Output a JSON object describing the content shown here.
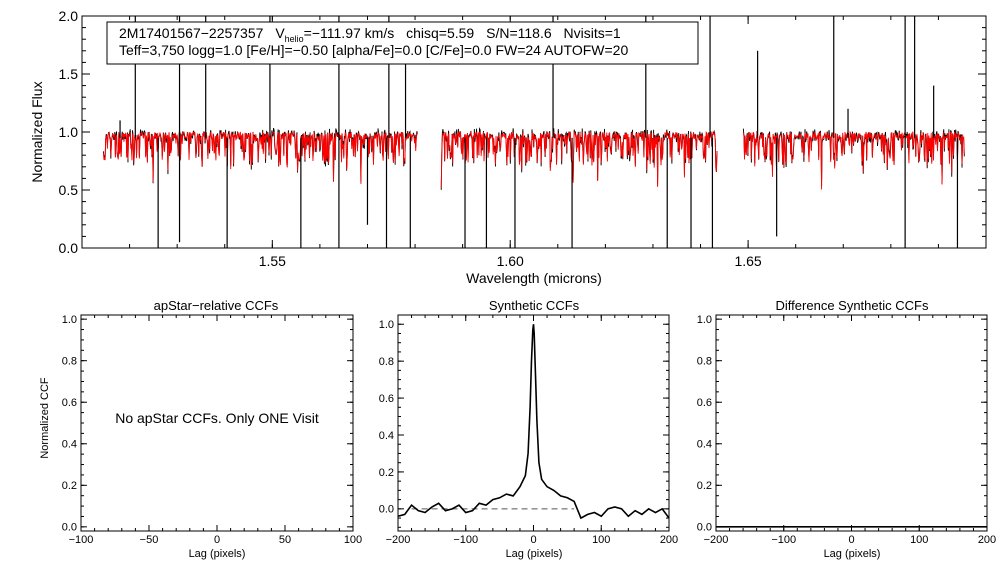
{
  "colors": {
    "observed": "#000000",
    "model": "#ff0000",
    "ref": "#555555"
  },
  "chart_data": [
    {
      "type": "line",
      "id": "spectrum",
      "title": "",
      "info_line1": {
        "star": "2M17401567−2257357",
        "v_prefix": "V",
        "v_sub": "helio",
        "v_value": "=−111.97 km/s",
        "chisq": "chisq=5.59",
        "sn": "S/N=118.6",
        "nvisits": "Nvisits=1"
      },
      "info_line2": "Teff=3,750 logg=1.0 [Fe/H]=−0.50 [alpha/Fe]=0.0 [C/Fe]=0.0 FW=24 AUTOFW=20",
      "xlabel": "Wavelength (microns)",
      "ylabel": "Normalized Flux",
      "xlim": [
        1.51,
        1.7
      ],
      "ylim": [
        0.0,
        2.0
      ],
      "xticks": [
        {
          "v": 1.55,
          "label": "1.55"
        },
        {
          "v": 1.6,
          "label": "1.60"
        },
        {
          "v": 1.65,
          "label": "1.65"
        }
      ],
      "yticks": [
        {
          "v": 0.0,
          "label": "0.0"
        },
        {
          "v": 0.5,
          "label": "0.5"
        },
        {
          "v": 1.0,
          "label": "1.0"
        },
        {
          "v": 1.5,
          "label": "1.5"
        },
        {
          "v": 2.0,
          "label": "2.0"
        }
      ],
      "chips": [
        [
          1.5145,
          1.5805
        ],
        [
          1.5855,
          1.6435
        ],
        [
          1.649,
          1.6955
        ]
      ],
      "series": [
        {
          "name": "observed",
          "color": "#000000"
        },
        {
          "name": "model",
          "color": "#ff0000"
        }
      ],
      "spikes": [
        [
          1.518,
          1.1
        ],
        [
          1.526,
          0.0
        ],
        [
          1.5305,
          0.05
        ],
        [
          1.5405,
          0.0
        ],
        [
          1.556,
          0.0
        ],
        [
          1.564,
          0.0
        ],
        [
          1.57,
          0.2
        ],
        [
          1.574,
          0.0
        ],
        [
          1.579,
          0.0
        ],
        [
          1.5905,
          0.0
        ],
        [
          1.595,
          0.0
        ],
        [
          1.601,
          0.0
        ],
        [
          1.613,
          0.0
        ],
        [
          1.633,
          0.0
        ],
        [
          1.638,
          0.0
        ],
        [
          1.6425,
          0.0
        ],
        [
          1.656,
          0.1
        ],
        [
          1.671,
          1.2
        ],
        [
          1.683,
          0.0
        ],
        [
          1.689,
          1.4
        ],
        [
          1.694,
          0.0
        ],
        [
          1.5212,
          2.0
        ],
        [
          1.5305,
          2.0
        ],
        [
          1.536,
          2.0
        ],
        [
          1.5495,
          2.0
        ],
        [
          1.564,
          2.0
        ],
        [
          1.5745,
          2.0
        ],
        [
          1.578,
          1.6
        ],
        [
          1.609,
          2.0
        ],
        [
          1.6285,
          2.0
        ],
        [
          1.642,
          2.0
        ],
        [
          1.652,
          1.7
        ],
        [
          1.668,
          2.0
        ],
        [
          1.683,
          2.0
        ],
        [
          1.685,
          2.0
        ]
      ]
    },
    {
      "type": "line",
      "id": "apstar",
      "title": "apStar−relative CCFs",
      "xlabel": "Lag (pixels)",
      "ylabel": "Normalized CCF",
      "xlim": [
        -100,
        100
      ],
      "ylim": [
        -0.02,
        1.02
      ],
      "xticks": [
        {
          "v": -100,
          "label": "−100"
        },
        {
          "v": -50,
          "label": "−50"
        },
        {
          "v": 0,
          "label": "0"
        },
        {
          "v": 50,
          "label": "50"
        },
        {
          "v": 100,
          "label": "100"
        }
      ],
      "yticks": [
        {
          "v": 0.0,
          "label": "0.0"
        },
        {
          "v": 0.2,
          "label": "0.2"
        },
        {
          "v": 0.4,
          "label": "0.4"
        },
        {
          "v": 0.6,
          "label": "0.6"
        },
        {
          "v": 0.8,
          "label": "0.8"
        },
        {
          "v": 1.0,
          "label": "1.0"
        }
      ],
      "message": "No apStar CCFs.  Only ONE Visit",
      "series": []
    },
    {
      "type": "line",
      "id": "synthetic",
      "title": "Synthetic CCFs",
      "xlabel": "Lag (pixels)",
      "ylabel": "",
      "xlim": [
        -200,
        200
      ],
      "ylim": [
        -0.12,
        1.05
      ],
      "xticks": [
        {
          "v": -200,
          "label": "−200"
        },
        {
          "v": -100,
          "label": "−100"
        },
        {
          "v": 0,
          "label": "0"
        },
        {
          "v": 100,
          "label": "100"
        },
        {
          "v": 200,
          "label": "200"
        }
      ],
      "yticks": [
        {
          "v": 0.0,
          "label": "0.0"
        },
        {
          "v": 0.2,
          "label": "0.2"
        },
        {
          "v": 0.4,
          "label": "0.4"
        },
        {
          "v": 0.6,
          "label": "0.6"
        },
        {
          "v": 0.8,
          "label": "0.8"
        },
        {
          "v": 1.0,
          "label": "1.0"
        }
      ],
      "reference_line": {
        "y": 0.0,
        "x": [
          -180,
          60
        ],
        "style": "dashed"
      },
      "series": [
        {
          "name": "ccf",
          "color": "#000000",
          "x": [
            -200,
            -190,
            -180,
            -170,
            -160,
            -150,
            -140,
            -130,
            -120,
            -110,
            -100,
            -90,
            -80,
            -70,
            -60,
            -50,
            -40,
            -30,
            -20,
            -12,
            -8,
            -5,
            -3,
            -1,
            0,
            1,
            3,
            5,
            8,
            12,
            20,
            30,
            40,
            50,
            60,
            70,
            80,
            90,
            100,
            110,
            120,
            130,
            140,
            150,
            160,
            170,
            180,
            190,
            200
          ],
          "y": [
            -0.04,
            -0.03,
            0.02,
            -0.01,
            -0.02,
            0.01,
            0.03,
            -0.01,
            0.0,
            0.02,
            -0.02,
            -0.01,
            0.03,
            0.02,
            0.05,
            0.06,
            0.08,
            0.07,
            0.12,
            0.18,
            0.3,
            0.55,
            0.8,
            0.97,
            1.0,
            0.95,
            0.72,
            0.48,
            0.25,
            0.16,
            0.12,
            0.1,
            0.07,
            0.06,
            0.04,
            -0.05,
            -0.03,
            -0.02,
            -0.04,
            0.0,
            0.01,
            0.0,
            -0.04,
            -0.01,
            -0.03,
            0.0,
            -0.02,
            0.0,
            -0.05
          ]
        }
      ]
    },
    {
      "type": "line",
      "id": "difference",
      "title": "Difference Synthetic CCFs",
      "xlabel": "Lag (pixels)",
      "ylabel": "",
      "xlim": [
        -200,
        200
      ],
      "ylim": [
        -0.02,
        1.02
      ],
      "xticks": [
        {
          "v": -200,
          "label": "−200"
        },
        {
          "v": -100,
          "label": "−100"
        },
        {
          "v": 0,
          "label": "0"
        },
        {
          "v": 100,
          "label": "100"
        },
        {
          "v": 200,
          "label": "200"
        }
      ],
      "yticks": [
        {
          "v": 0.0,
          "label": "0.0"
        },
        {
          "v": 0.2,
          "label": "0.2"
        },
        {
          "v": 0.4,
          "label": "0.4"
        },
        {
          "v": 0.6,
          "label": "0.6"
        },
        {
          "v": 0.8,
          "label": "0.8"
        },
        {
          "v": 1.0,
          "label": "1.0"
        }
      ],
      "series": [
        {
          "name": "difference",
          "color": "#000000",
          "x": [
            -200,
            200
          ],
          "y": [
            0.0,
            0.0
          ]
        }
      ]
    }
  ]
}
